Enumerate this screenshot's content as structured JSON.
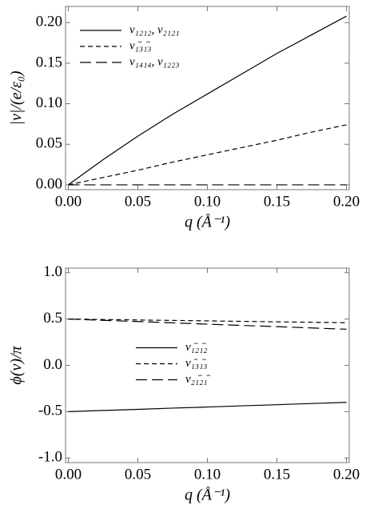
{
  "chart_data": [
    {
      "type": "line",
      "y_label": "|v|/(e/ε₀)",
      "x_label": "q (Å⁻¹)",
      "x": [
        0,
        0.025,
        0.05,
        0.075,
        0.1,
        0.125,
        0.15,
        0.175,
        0.2
      ],
      "series": [
        {
          "name": "v₁₂₁₂, v₂₁₂₁",
          "color": "#000000",
          "dash": "solid",
          "values": [
            0,
            0.031,
            0.06,
            0.087,
            0.112,
            0.137,
            0.162,
            0.185,
            0.208
          ]
        },
        {
          "name": "v₁̄₃₁̄₃",
          "color": "#000000",
          "dash": "short",
          "values": [
            0,
            0.009,
            0.018,
            0.028,
            0.037,
            0.046,
            0.055,
            0.065,
            0.074
          ]
        },
        {
          "name": "v₁₄₁₄, v₁₂₂₃",
          "color": "#000000",
          "dash": "long",
          "values": [
            0,
            0,
            0,
            0,
            0,
            0,
            0,
            0,
            0
          ]
        }
      ],
      "xlim": [
        -0.002,
        0.202
      ],
      "ylim": [
        -0.006,
        0.22
      ],
      "xticks": [
        {
          "value": 0,
          "label": "0.00"
        },
        {
          "value": 0.05,
          "label": "0.05"
        },
        {
          "value": 0.1,
          "label": "0.10"
        },
        {
          "value": 0.15,
          "label": "0.15"
        },
        {
          "value": 0.2,
          "label": "0.20"
        }
      ],
      "yticks": [
        {
          "value": 0,
          "label": "0.00"
        },
        {
          "value": 0.05,
          "label": "0.05"
        },
        {
          "value": 0.1,
          "label": "0.10"
        },
        {
          "value": 0.15,
          "label": "0.15"
        },
        {
          "value": 0.2,
          "label": "0.20"
        }
      ],
      "legend": "upper left"
    },
    {
      "type": "line",
      "y_label": "ϕ(v)/π",
      "x_label": "q (Å⁻¹)",
      "x": [
        0,
        0.025,
        0.05,
        0.075,
        0.1,
        0.125,
        0.15,
        0.175,
        0.2
      ],
      "series": [
        {
          "name": "v₁̄₂₁̄₂",
          "color": "#000000",
          "dash": "solid",
          "values": [
            -0.5,
            -0.487,
            -0.475,
            -0.462,
            -0.45,
            -0.437,
            -0.425,
            -0.412,
            -0.4
          ]
        },
        {
          "name": "v₁̄₃₁̄₃",
          "color": "#000000",
          "dash": "short",
          "values": [
            0.5,
            0.495,
            0.49,
            0.485,
            0.48,
            0.475,
            0.47,
            0.465,
            0.46
          ]
        },
        {
          "name": "v₂₁̄₂₁̄",
          "color": "#000000",
          "dash": "long",
          "values": [
            0.5,
            0.486,
            0.473,
            0.459,
            0.445,
            0.431,
            0.418,
            0.404,
            0.39
          ]
        }
      ],
      "xlim": [
        -0.002,
        0.202
      ],
      "ylim": [
        -1.05,
        1.05
      ],
      "xticks": [
        {
          "value": 0,
          "label": "0.00"
        },
        {
          "value": 0.05,
          "label": "0.05"
        },
        {
          "value": 0.1,
          "label": "0.10"
        },
        {
          "value": 0.15,
          "label": "0.15"
        },
        {
          "value": 0.2,
          "label": "0.20"
        }
      ],
      "yticks": [
        {
          "value": 1,
          "label": "1.0"
        },
        {
          "value": 0.5,
          "label": "0.5"
        },
        {
          "value": 0,
          "label": "0.0"
        },
        {
          "value": -0.5,
          "label": "-0.5"
        },
        {
          "value": -1,
          "label": "-1.0"
        }
      ],
      "legend": "center"
    }
  ]
}
